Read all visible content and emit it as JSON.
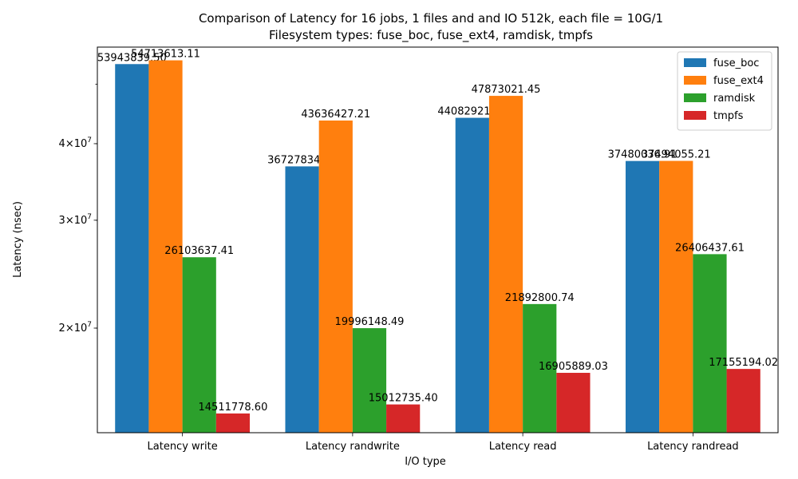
{
  "chart_data": {
    "type": "bar",
    "title": "Comparison of Latency for 16 jobs, 1 files and  and IO 512k, each file = 10G/1",
    "subtitle": "Filesystem types: fuse_boc, fuse_ext4, ramdisk, tmpfs",
    "xlabel": "I/O type",
    "ylabel": "Latency (nsec)",
    "yscale": "log",
    "ylim": [
      13500000,
      57500000
    ],
    "yticks": [
      {
        "value": 20000000,
        "base": "2×10",
        "exp": "7"
      },
      {
        "value": 30000000,
        "base": "3×10",
        "exp": "7"
      },
      {
        "value": 40000000,
        "base": "4×10",
        "exp": "7"
      }
    ],
    "categories": [
      "Latency write",
      "Latency randwrite",
      "Latency read",
      "Latency randread"
    ],
    "series": [
      {
        "name": "fuse_boc",
        "color": "#1f77b4",
        "values": [
          53943839.5,
          36727834.57,
          44082921.88,
          37480036.91
        ],
        "labels": [
          "53943839.50",
          "36727834.57",
          "44082921.88",
          "37480036.91"
        ]
      },
      {
        "name": "fuse_ext4",
        "color": "#ff7f0e",
        "values": [
          54713613.11,
          43636427.21,
          47873021.45,
          37494055.21
        ],
        "labels": [
          "54713613.11",
          "43636427.21",
          "47873021.45",
          "37494055.21"
        ]
      },
      {
        "name": "ramdisk",
        "color": "#2ca02c",
        "values": [
          26103637.41,
          19996148.49,
          21892800.74,
          26406437.61
        ],
        "labels": [
          "26103637.41",
          "19996148.49",
          "21892800.74",
          "26406437.61"
        ]
      },
      {
        "name": "tmpfs",
        "color": "#d62728",
        "values": [
          14511778.6,
          15012735.4,
          16905889.03,
          17155194.02
        ],
        "labels": [
          "14511778.60",
          "15012735.40",
          "16905889.03",
          "17155194.02"
        ]
      }
    ],
    "legend_position": "top-right",
    "grid": false
  }
}
